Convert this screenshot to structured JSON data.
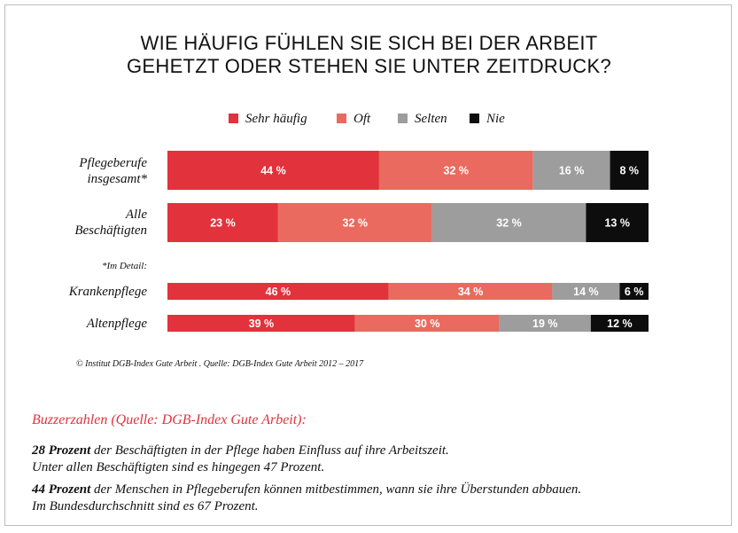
{
  "title_line1": "WIE HÄUFIG FÜHLEN SIE SICH BEI DER ARBEIT",
  "title_line2": "GEHETZT ODER STEHEN SIE UNTER ZEITDRUCK?",
  "detail_label": "*Im Detail:",
  "source": "© Institut DGB-Index Gute Arbeit . Quelle: DGB-Index Gute Arbeit 2012 – 2017",
  "colors": {
    "sehr_haeufig": "#e2323c",
    "oft": "#ea6a5f",
    "selten": "#9d9d9d",
    "nie": "#0d0d0d"
  },
  "chart_data": {
    "type": "bar",
    "orientation": "horizontal-stacked",
    "unit": "%",
    "legend": [
      "Sehr häufig",
      "Oft",
      "Selten",
      "Nie"
    ],
    "categories": [
      {
        "line1": "Pflegeberufe",
        "line2": "insgesamt*"
      },
      {
        "line1": "Alle",
        "line2": "Beschäftigten"
      },
      {
        "line1": "Krankenpflege",
        "line2": ""
      },
      {
        "line1": "Altenpflege",
        "line2": ""
      }
    ],
    "category_names": [
      "Pflegeberufe insgesamt*",
      "Alle Beschäftigten",
      "Krankenpflege",
      "Altenpflege"
    ],
    "series": [
      {
        "name": "Sehr häufig",
        "values": [
          44,
          23,
          46,
          39
        ]
      },
      {
        "name": "Oft",
        "values": [
          32,
          32,
          34,
          30
        ]
      },
      {
        "name": "Selten",
        "values": [
          16,
          32,
          14,
          19
        ]
      },
      {
        "name": "Nie",
        "values": [
          8,
          13,
          6,
          12
        ]
      }
    ],
    "xlim": [
      0,
      100
    ]
  },
  "buzz": {
    "title": "Buzzerzahlen (Quelle: DGB-Index Gute Arbeit):",
    "p1_strong": "28 Prozent",
    "p1_rest": " der Beschäftigten in der Pflege haben Einfluss auf ihre Arbeitszeit.",
    "p1_line2": "Unter allen Beschäftigten sind es hingegen 47 Prozent.",
    "p2_strong": "44 Prozent",
    "p2_rest": " der Menschen in Pflegeberufen können mitbestimmen, wann sie ihre Überstunden abbauen.",
    "p2_line2": "Im Bundesdurchschnitt sind es 67 Prozent."
  }
}
